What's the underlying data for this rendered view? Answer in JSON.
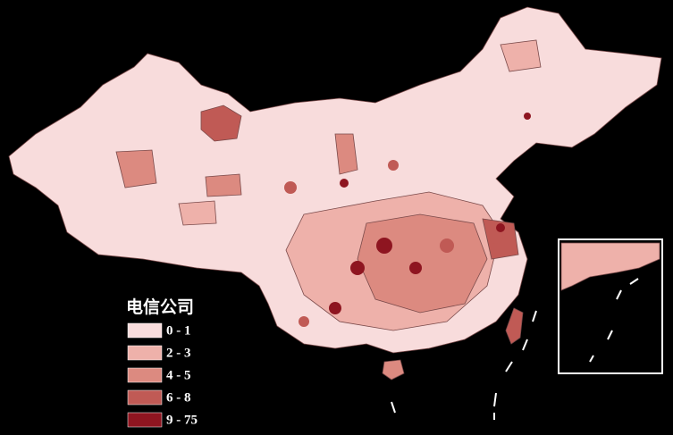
{
  "legend": {
    "title": "电信公司",
    "items": [
      {
        "label": "0 - 1",
        "color": "#f8dcdc"
      },
      {
        "label": "2 - 3",
        "color": "#eeb1aa"
      },
      {
        "label": "4 - 5",
        "color": "#dc8a80"
      },
      {
        "label": "6 - 8",
        "color": "#c05a55"
      },
      {
        "label": "9 - 75",
        "color": "#8e1520"
      }
    ]
  }
}
